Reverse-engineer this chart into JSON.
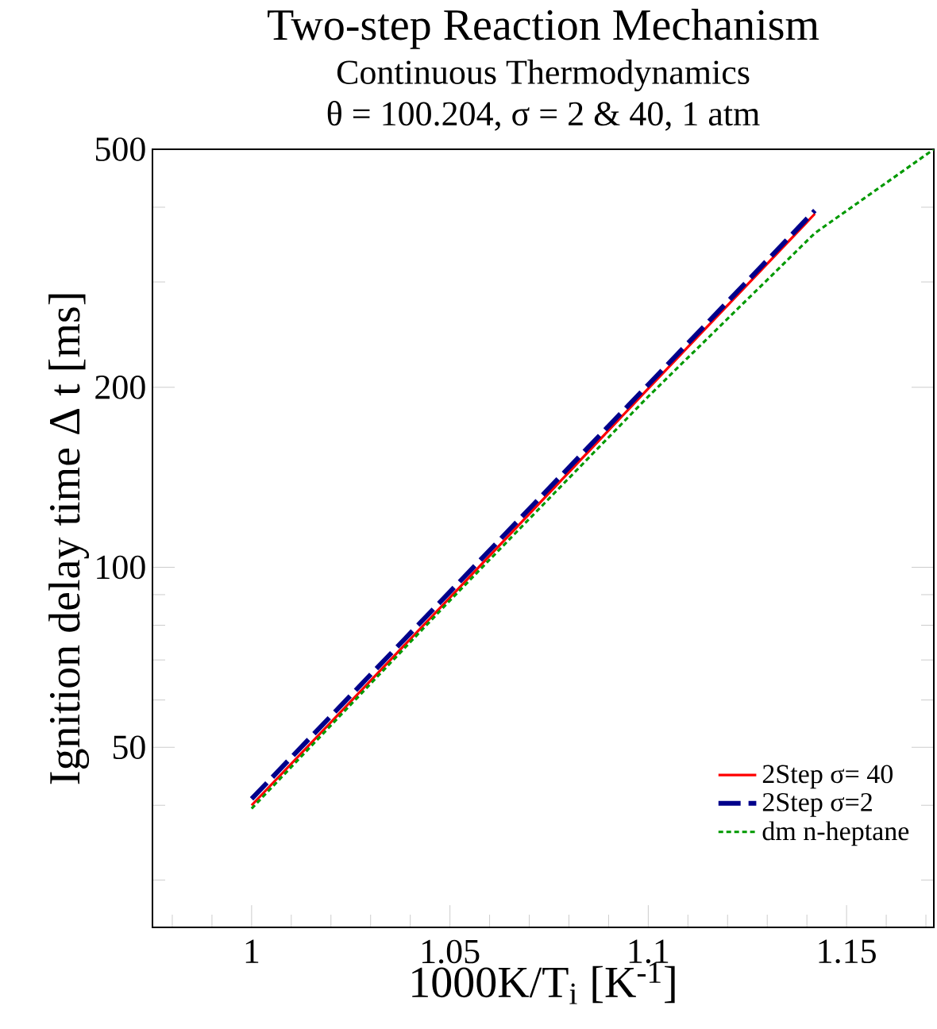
{
  "chart_data": {
    "type": "line",
    "title": "Two-step Reaction Mechanism",
    "subtitle": "Continuous Thermodynamics",
    "annotations": [
      "θ = 100.204, σ = 2 & 40, 1 atm"
    ],
    "xlabel": "1000K/T$_{i}$  [K$^{-1}$]",
    "ylabel": "Ignition delay time Δ t [ms]",
    "log": "y",
    "xlim": [
      0.975,
      1.172
    ],
    "ylim": [
      25,
      500
    ],
    "xticks": [
      {
        "value": 0.98,
        "label": null
      },
      {
        "value": 0.99,
        "label": null
      },
      1,
      {
        "value": 1.01,
        "label": null
      },
      {
        "value": 1.02,
        "label": null
      },
      {
        "value": 1.03,
        "label": null
      },
      {
        "value": 1.04,
        "label": null
      },
      1.05,
      {
        "value": 1.06,
        "label": null
      },
      {
        "value": 1.07,
        "label": null
      },
      {
        "value": 1.08,
        "label": null
      },
      {
        "value": 1.09,
        "label": null
      },
      1.1,
      {
        "value": 1.11,
        "label": null
      },
      {
        "value": 1.12,
        "label": null
      },
      {
        "value": 1.13,
        "label": null
      },
      {
        "value": 1.14,
        "label": null
      },
      1.15,
      {
        "value": 1.16,
        "label": null
      },
      {
        "value": 1.17,
        "label": null
      }
    ],
    "yticks": [
      {
        "value": 30,
        "label": null
      },
      {
        "value": 40,
        "label": null
      },
      50,
      {
        "value": 60,
        "label": null
      },
      {
        "value": 70,
        "label": null
      },
      {
        "value": 80,
        "label": null
      },
      {
        "value": 90,
        "label": null
      },
      100,
      200,
      {
        "value": 300,
        "label": null
      },
      {
        "value": 400,
        "label": null
      },
      500
    ],
    "grid": false,
    "legend": "bottom right",
    "series": [
      {
        "name": "2Step σ= 40",
        "color": "#ff0000",
        "line_style": "solid",
        "x": [
          1.0,
          1.05,
          1.1,
          1.142
        ],
        "values": [
          40,
          89,
          199,
          390
        ]
      },
      {
        "name": "2Step σ=2",
        "color": "#00008b",
        "line_style": "dashed",
        "x": [
          1.0,
          1.05,
          1.1,
          1.142
        ],
        "values": [
          41,
          91,
          202,
          395
        ]
      },
      {
        "name": "dm n-heptane",
        "color": "#009900",
        "line_style": "dotted",
        "x": [
          1.0,
          1.05,
          1.1,
          1.142,
          1.172
        ],
        "values": [
          39.5,
          88,
          193,
          362,
          500
        ]
      }
    ]
  }
}
